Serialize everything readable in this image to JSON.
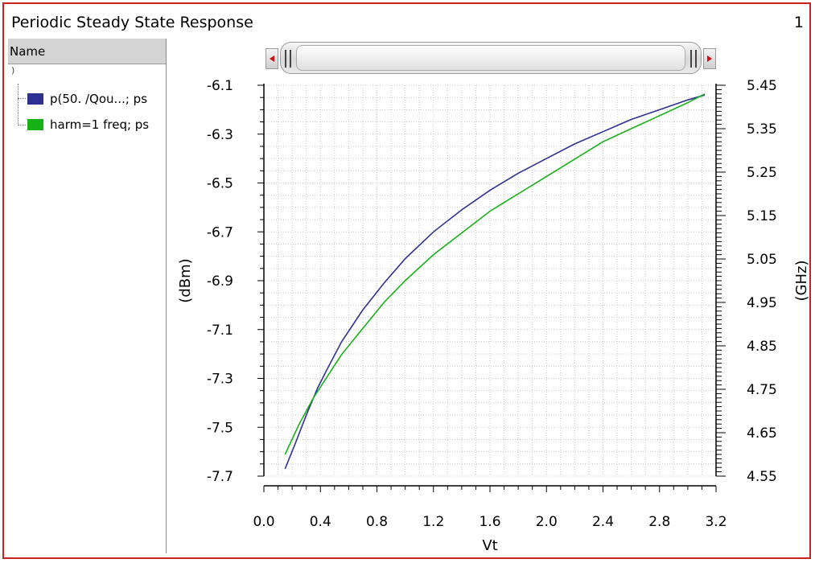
{
  "window": {
    "title": "Periodic Steady State Response",
    "page_number": "1"
  },
  "legend": {
    "header": "Name",
    "group_label": ")",
    "items": [
      {
        "label": "p(50. /Qou...; ps",
        "color": "#2e3192"
      },
      {
        "label": "harm=1 freq; ps",
        "color": "#17b117"
      }
    ]
  },
  "chart_data": {
    "type": "line",
    "xlabel": "Vt",
    "ylabel_left": "(dBm)",
    "ylabel_right": "(GHz)",
    "xlim": [
      0.0,
      3.2
    ],
    "ylim_left": [
      -7.7,
      -6.1
    ],
    "ylim_right": [
      4.55,
      5.45
    ],
    "x_ticks": [
      "0.0",
      "0.4",
      "0.8",
      "1.2",
      "1.6",
      "2.0",
      "2.4",
      "2.8",
      "3.2"
    ],
    "y_left_ticks": [
      "-6.1",
      "-6.3",
      "-6.5",
      "-6.7",
      "-6.9",
      "-7.1",
      "-7.3",
      "-7.5",
      "-7.7"
    ],
    "y_right_ticks": [
      "5.45",
      "5.35",
      "5.25",
      "5.15",
      "5.05",
      "4.95",
      "4.85",
      "4.75",
      "4.65",
      "4.55"
    ],
    "grid": true,
    "series": [
      {
        "name": "p(50. /Qou...; ps",
        "axis": "left",
        "color": "#2e3192",
        "x": [
          0.15,
          0.22,
          0.3,
          0.38,
          0.45,
          0.55,
          0.7,
          0.85,
          1.0,
          1.2,
          1.4,
          1.6,
          1.8,
          2.0,
          2.2,
          2.4,
          2.6,
          2.8,
          3.0,
          3.12
        ],
        "y": [
          -7.67,
          -7.57,
          -7.45,
          -7.34,
          -7.26,
          -7.15,
          -7.02,
          -6.91,
          -6.81,
          -6.7,
          -6.61,
          -6.53,
          -6.46,
          -6.4,
          -6.34,
          -6.29,
          -6.24,
          -6.2,
          -6.16,
          -6.14
        ]
      },
      {
        "name": "harm=1 freq; ps",
        "axis": "right",
        "color": "#17b117",
        "x": [
          0.15,
          0.25,
          0.35,
          0.45,
          0.55,
          0.7,
          0.85,
          1.0,
          1.2,
          1.4,
          1.6,
          1.8,
          2.0,
          2.2,
          2.4,
          2.6,
          2.8,
          3.0,
          3.12
        ],
        "y": [
          4.6,
          4.67,
          4.73,
          4.78,
          4.83,
          4.89,
          4.95,
          5.0,
          5.06,
          5.11,
          5.16,
          5.2,
          5.24,
          5.28,
          5.32,
          5.35,
          5.38,
          5.41,
          5.43
        ]
      }
    ]
  }
}
